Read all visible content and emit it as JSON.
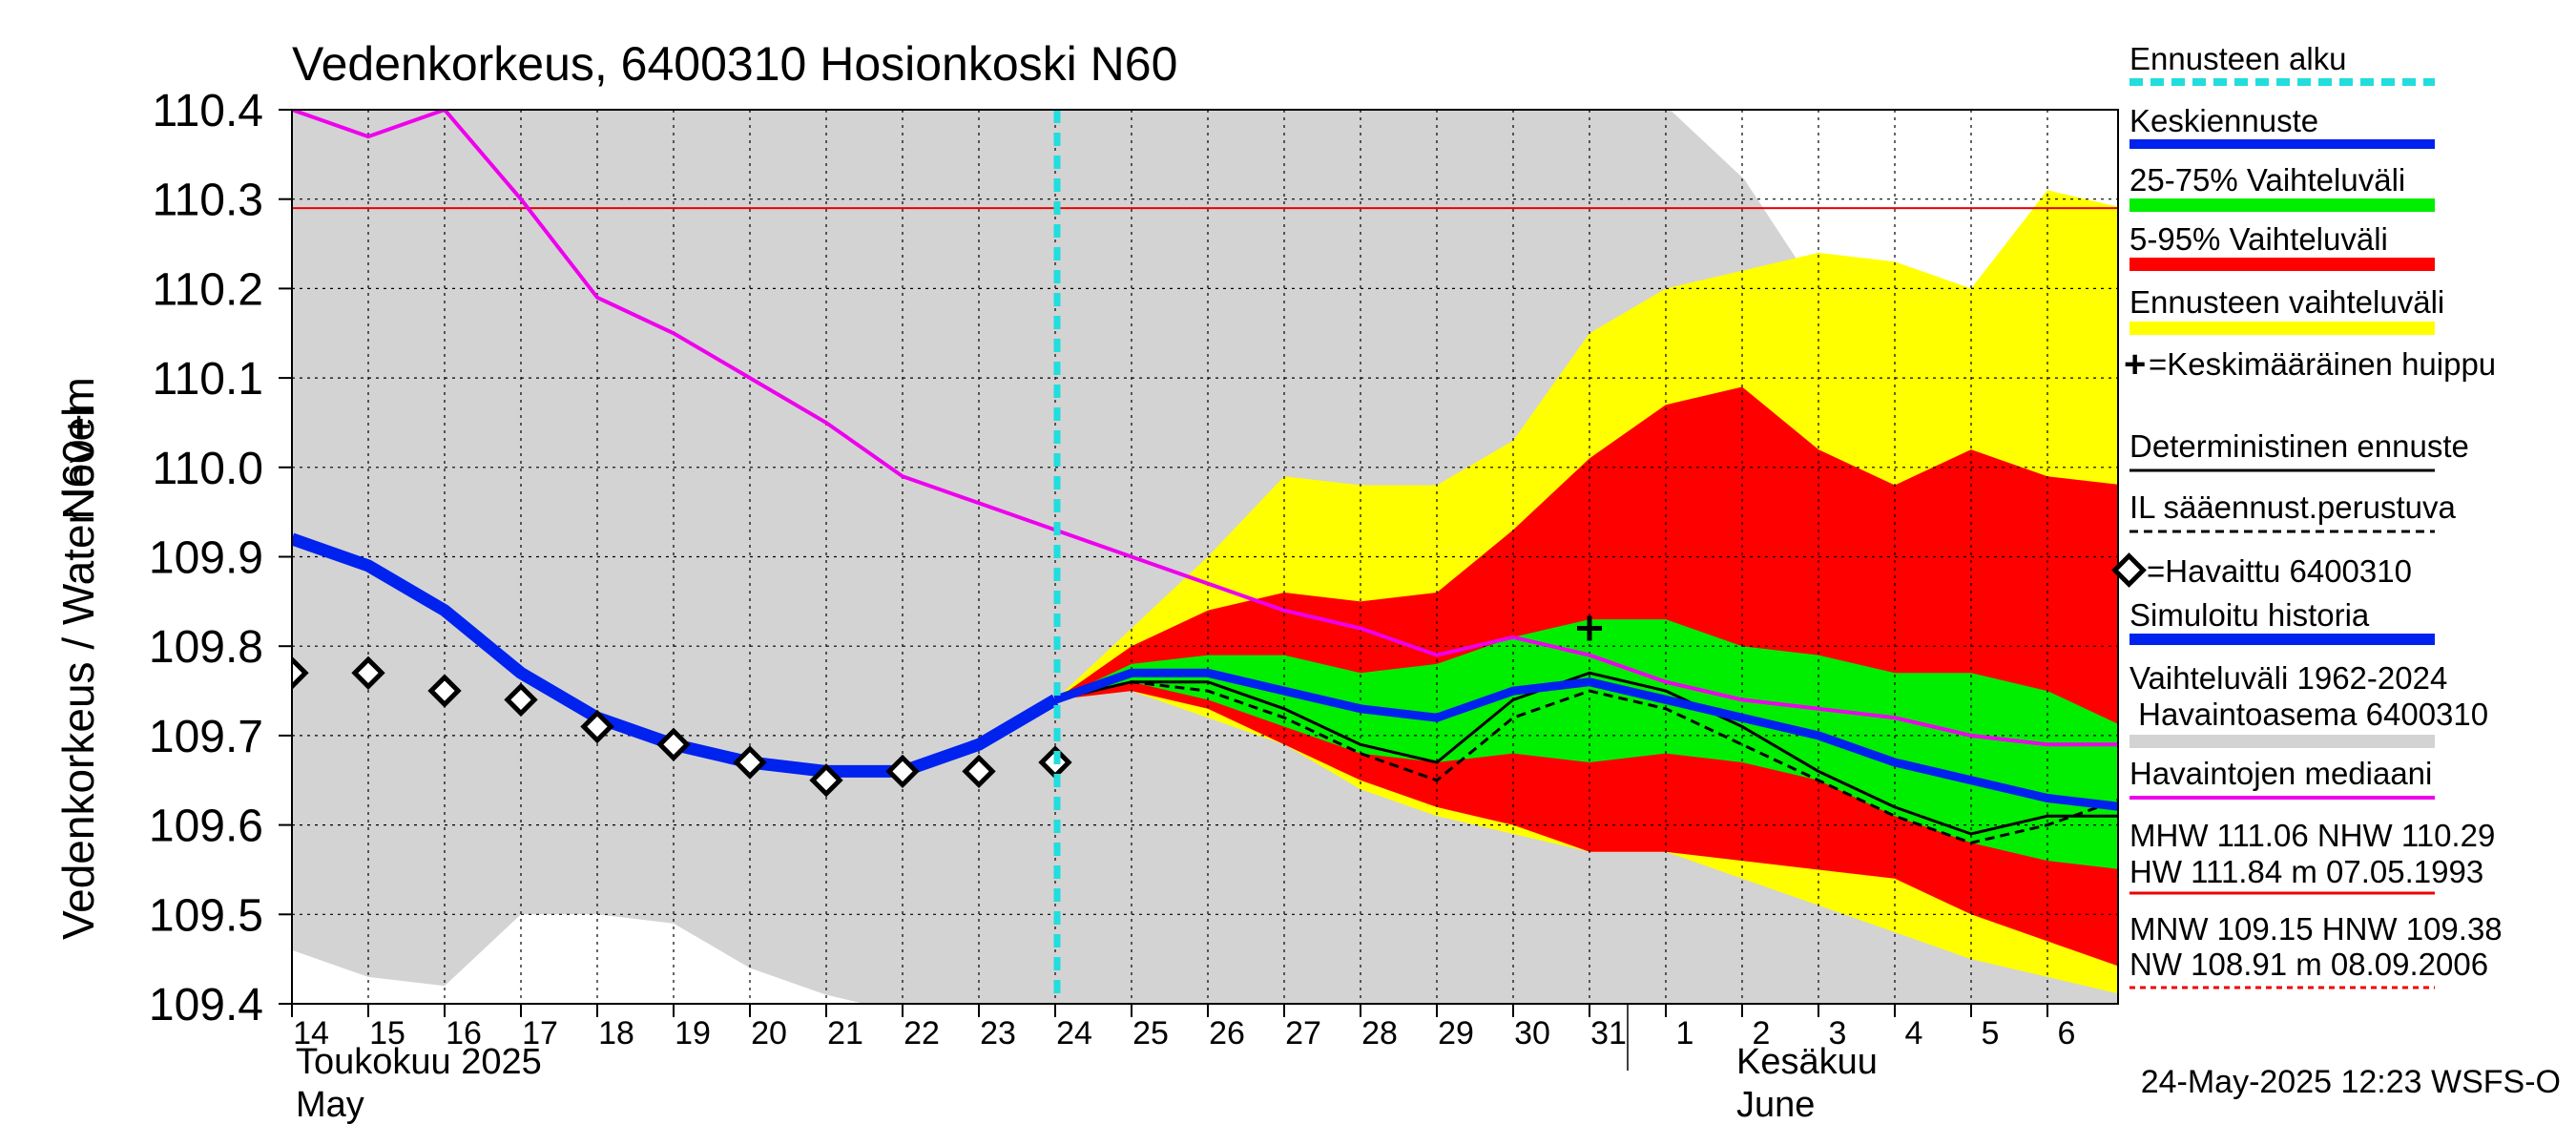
{
  "chart_data": {
    "type": "line",
    "title": "Vedenkorkeus, 6400310 Hosionkoski N60",
    "ylabel_right": "N60+m",
    "ylabel_left": "Vedenkorkeus / Water level",
    "ylim": [
      109.4,
      110.4
    ],
    "yticks": [
      "110.4",
      "110.3",
      "110.2",
      "110.1",
      "110.0",
      "109.9",
      "109.8",
      "109.7",
      "109.6",
      "109.5",
      "109.4"
    ],
    "xlim": [
      0,
      24
    ],
    "xticks": [
      {
        "x": 0,
        "label": "14"
      },
      {
        "x": 1,
        "label": "15"
      },
      {
        "x": 2,
        "label": "16"
      },
      {
        "x": 3,
        "label": "17"
      },
      {
        "x": 4,
        "label": "18"
      },
      {
        "x": 5,
        "label": "19"
      },
      {
        "x": 6,
        "label": "20"
      },
      {
        "x": 7,
        "label": "21"
      },
      {
        "x": 8,
        "label": "22"
      },
      {
        "x": 9,
        "label": "23"
      },
      {
        "x": 10,
        "label": "24"
      },
      {
        "x": 11,
        "label": "25"
      },
      {
        "x": 12,
        "label": "26"
      },
      {
        "x": 13,
        "label": "27"
      },
      {
        "x": 14,
        "label": "28"
      },
      {
        "x": 15,
        "label": "29"
      },
      {
        "x": 16,
        "label": "30"
      },
      {
        "x": 17,
        "label": "31"
      },
      {
        "x": 18,
        "label": "1"
      },
      {
        "x": 19,
        "label": "2"
      },
      {
        "x": 20,
        "label": "3"
      },
      {
        "x": 21,
        "label": "4"
      },
      {
        "x": 22,
        "label": "5"
      },
      {
        "x": 23,
        "label": "6"
      }
    ],
    "month_labels": {
      "may_fi": "Toukokuu  2025",
      "may_en": "May",
      "june_fi": "Kesäkuu",
      "june_en": "June"
    },
    "forecast_start_x": 10,
    "nhw_level": 110.29,
    "history_range": {
      "x": [
        0,
        1,
        2,
        3,
        4,
        5,
        6,
        7,
        7.5
      ],
      "upper": [
        110.4,
        110.4,
        110.4,
        110.4,
        110.4,
        110.4,
        110.4,
        110.4,
        110.4
      ],
      "lower": [
        109.46,
        109.43,
        109.42,
        109.5,
        109.5,
        109.49,
        109.44,
        109.41,
        109.4
      ],
      "upper_right_x": [
        18,
        19,
        20,
        21,
        22,
        23,
        24
      ],
      "upper_right": [
        110.4,
        110.32,
        110.19,
        110.16,
        110.1,
        110.18,
        110.22
      ]
    },
    "forecast_x": [
      10,
      11,
      12,
      13,
      14,
      15,
      16,
      17,
      18,
      19,
      20,
      21,
      22,
      23,
      24
    ],
    "forecast_range": {
      "upper": [
        109.74,
        109.82,
        109.9,
        109.99,
        109.98,
        109.98,
        110.03,
        110.15,
        110.2,
        110.22,
        110.24,
        110.23,
        110.2,
        110.31,
        110.29
      ],
      "lower": [
        109.74,
        109.75,
        109.72,
        109.69,
        109.64,
        109.61,
        109.59,
        109.57,
        109.57,
        109.54,
        109.51,
        109.48,
        109.45,
        109.43,
        109.41
      ]
    },
    "band_5_95": {
      "upper": [
        109.74,
        109.8,
        109.84,
        109.86,
        109.85,
        109.86,
        109.93,
        110.01,
        110.07,
        110.09,
        110.02,
        109.98,
        110.02,
        109.99,
        109.98
      ],
      "lower": [
        109.74,
        109.75,
        109.73,
        109.69,
        109.65,
        109.62,
        109.6,
        109.57,
        109.57,
        109.56,
        109.55,
        109.54,
        109.5,
        109.47,
        109.44
      ]
    },
    "band_25_75": {
      "upper": [
        109.74,
        109.78,
        109.79,
        109.79,
        109.77,
        109.78,
        109.81,
        109.83,
        109.83,
        109.8,
        109.79,
        109.77,
        109.77,
        109.75,
        109.71
      ],
      "lower": [
        109.74,
        109.76,
        109.74,
        109.71,
        109.68,
        109.67,
        109.68,
        109.67,
        109.68,
        109.67,
        109.65,
        109.61,
        109.58,
        109.56,
        109.55
      ]
    },
    "mean_forecast": [
      109.74,
      109.77,
      109.77,
      109.75,
      109.73,
      109.72,
      109.75,
      109.76,
      109.74,
      109.72,
      109.7,
      109.67,
      109.65,
      109.63,
      109.62
    ],
    "deterministic": [
      109.74,
      109.76,
      109.76,
      109.73,
      109.69,
      109.67,
      109.74,
      109.77,
      109.75,
      109.71,
      109.66,
      109.62,
      109.59,
      109.61,
      109.61
    ],
    "weather_based": [
      109.74,
      109.76,
      109.75,
      109.72,
      109.68,
      109.65,
      109.72,
      109.75,
      109.73,
      109.69,
      109.65,
      109.61,
      109.58,
      109.6,
      109.63
    ],
    "simulated_history": {
      "x": [
        0,
        1,
        2,
        3,
        4,
        5,
        6,
        7,
        8,
        9,
        10
      ],
      "y": [
        109.92,
        109.89,
        109.84,
        109.77,
        109.72,
        109.69,
        109.67,
        109.66,
        109.66,
        109.69,
        109.74
      ]
    },
    "observed": {
      "x": [
        0,
        1,
        2,
        3,
        4,
        5,
        6,
        7,
        8,
        9,
        10
      ],
      "y": [
        109.77,
        109.77,
        109.75,
        109.74,
        109.71,
        109.69,
        109.67,
        109.65,
        109.66,
        109.66,
        109.67
      ]
    },
    "median_obs": {
      "x": [
        0,
        1,
        2,
        3,
        4,
        5,
        6,
        7,
        8,
        9,
        10,
        11,
        12,
        13,
        14,
        15,
        16,
        17,
        18,
        19,
        20,
        21,
        22,
        23,
        24
      ],
      "y": [
        110.4,
        110.37,
        110.4,
        110.3,
        110.19,
        110.15,
        110.1,
        110.05,
        109.99,
        109.96,
        109.93,
        109.9,
        109.87,
        109.84,
        109.82,
        109.79,
        109.81,
        109.79,
        109.76,
        109.74,
        109.73,
        109.72,
        109.7,
        109.69,
        109.69
      ]
    },
    "mean_peak": {
      "x": 17,
      "y": 109.82
    },
    "colors": {
      "forecast_start": "#22dddd",
      "mean": "#0022ee",
      "band_25_75": "#00ee00",
      "band_5_95": "#ff0000",
      "forecast_range": "#ffff00",
      "history": "#d3d3d3",
      "median": "#ee00ee",
      "nhw_line": "#ee0000",
      "deterministic": "#000000"
    },
    "legend": [
      "Ennusteen alku",
      "Keskiennuste",
      "25-75% Vaihteluväli",
      "5-95% Vaihteluväli",
      "Ennusteen vaihteluväli",
      "=Keskimääräinen huippu",
      "Deterministinen ennuste",
      "IL sääennust.perustuva",
      "=Havaittu 6400310",
      "Simuloitu historia",
      "Vaihteluväli 1962-2024",
      " Havaintoasema 6400310",
      "Havaintojen mediaani",
      "MHW 111.06 NHW 110.29",
      "HW 111.84 m 07.05.1993",
      "MNW 109.15 HNW 109.38",
      "NW 108.91 m 08.09.2006"
    ],
    "legend_position": "right",
    "footer": "24-May-2025 12:23 WSFS-O"
  }
}
